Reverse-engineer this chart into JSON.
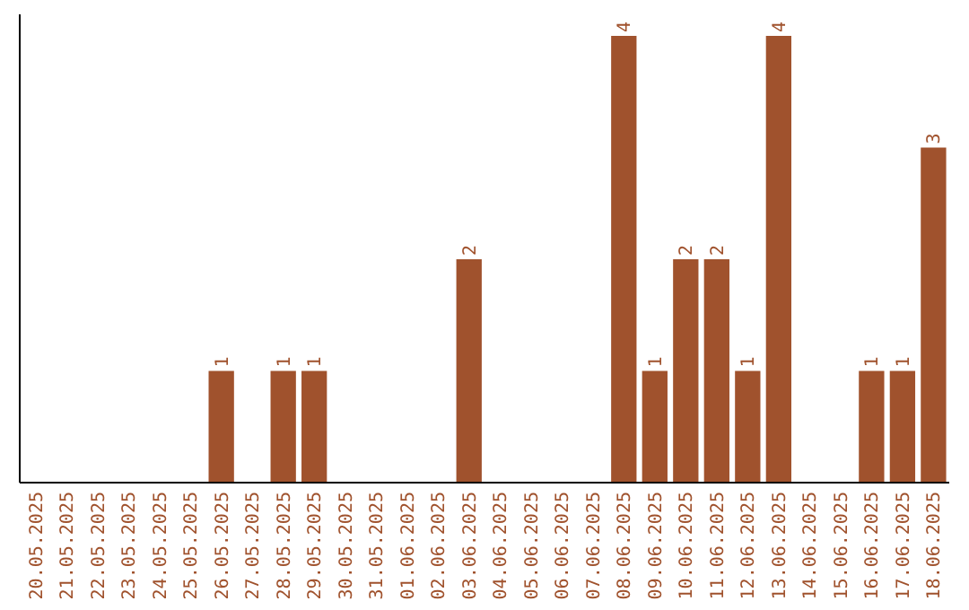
{
  "chart_data": {
    "type": "bar",
    "categories": [
      "20.05.2025",
      "21.05.2025",
      "22.05.2025",
      "23.05.2025",
      "24.05.2025",
      "25.05.2025",
      "26.05.2025",
      "27.05.2025",
      "28.05.2025",
      "29.05.2025",
      "30.05.2025",
      "31.05.2025",
      "01.06.2025",
      "02.06.2025",
      "03.06.2025",
      "04.06.2025",
      "05.06.2025",
      "06.06.2025",
      "07.06.2025",
      "08.06.2025",
      "09.06.2025",
      "10.06.2025",
      "11.06.2025",
      "12.06.2025",
      "13.06.2025",
      "14.06.2025",
      "15.06.2025",
      "16.06.2025",
      "17.06.2025",
      "18.06.2025"
    ],
    "values": [
      0,
      0,
      0,
      0,
      0,
      0,
      1,
      0,
      1,
      1,
      0,
      0,
      0,
      0,
      2,
      0,
      0,
      0,
      0,
      4,
      1,
      2,
      2,
      1,
      4,
      0,
      0,
      1,
      1,
      3
    ],
    "value_labels": [
      null,
      null,
      null,
      null,
      null,
      null,
      "1",
      null,
      "1",
      "1",
      null,
      null,
      null,
      null,
      "2",
      null,
      null,
      null,
      null,
      "4",
      "1",
      "2",
      "2",
      "1",
      "4",
      null,
      null,
      "1",
      "1",
      "3"
    ],
    "color": "#a0522d",
    "tick_labels": "x"
  }
}
